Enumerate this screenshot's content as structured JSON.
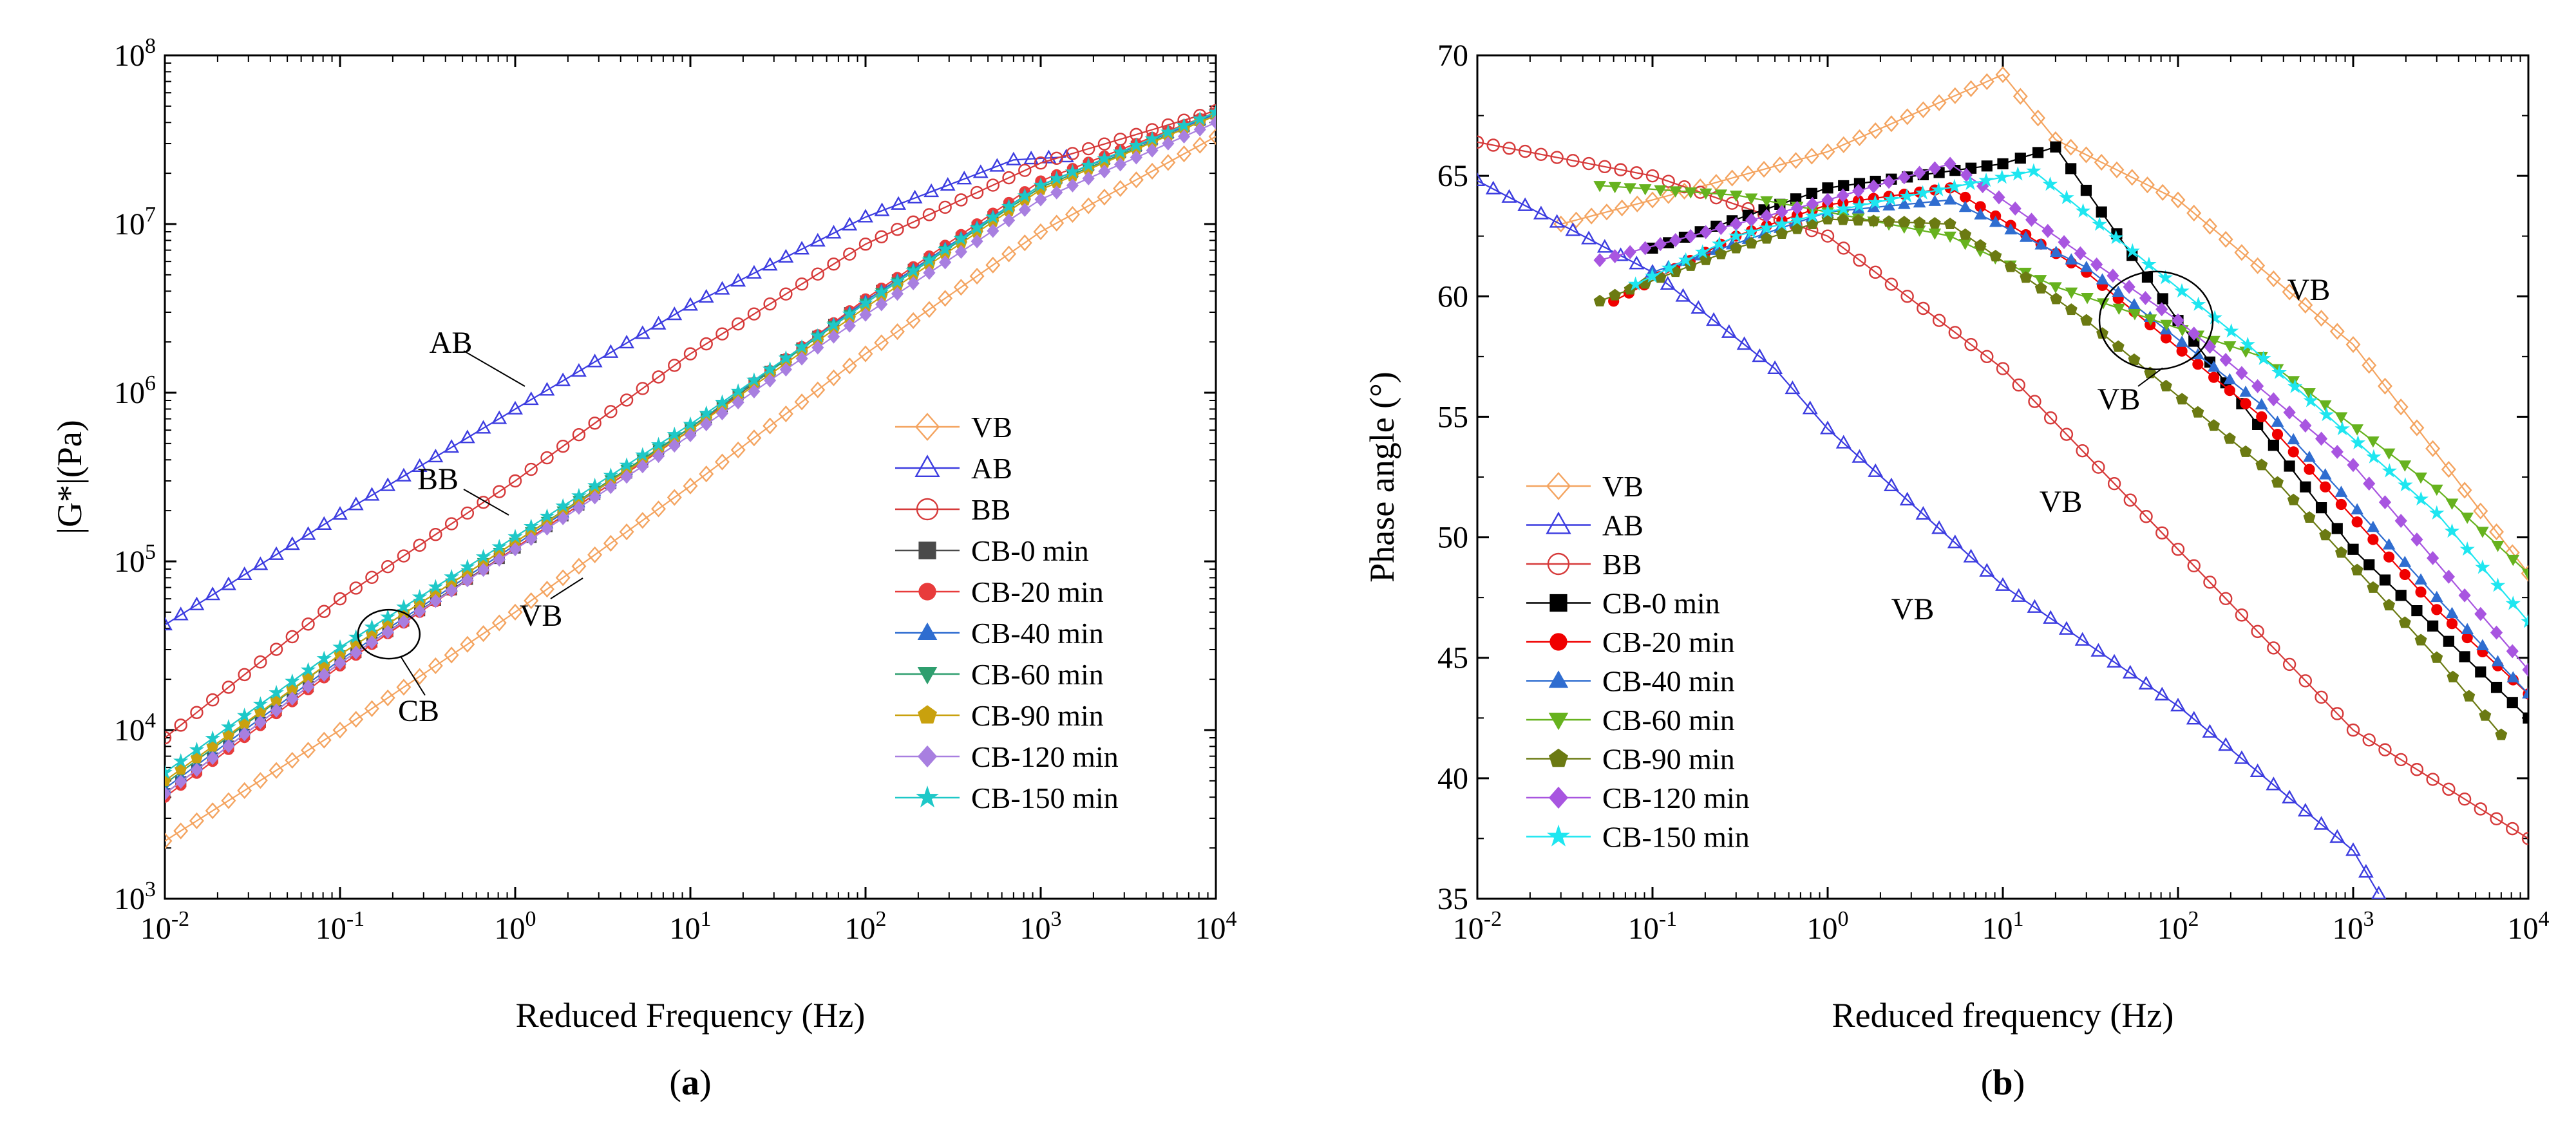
{
  "chart_data": [
    {
      "type": "scatter",
      "panel_label": "a",
      "xlabel": "Reduced Frequency (Hz)",
      "ylabel": "|G*|(Pa)",
      "xscale": "log",
      "yscale": "log",
      "xlim": [
        0.01,
        10000
      ],
      "ylim": [
        1000,
        100000000
      ],
      "x_tick_labels": [
        {
          "base": "10",
          "exp": "-2"
        },
        {
          "base": "10",
          "exp": "-1"
        },
        {
          "base": "10",
          "exp": "0"
        },
        {
          "base": "10",
          "exp": "1"
        },
        {
          "base": "10",
          "exp": "2"
        },
        {
          "base": "10",
          "exp": "3"
        },
        {
          "base": "10",
          "exp": "4"
        }
      ],
      "y_tick_labels": [
        {
          "base": "10",
          "exp": "3"
        },
        {
          "base": "10",
          "exp": "4"
        },
        {
          "base": "10",
          "exp": "5"
        },
        {
          "base": "10",
          "exp": "6"
        },
        {
          "base": "10",
          "exp": "7"
        },
        {
          "base": "10",
          "exp": "8"
        }
      ],
      "legend_position": "lower-right",
      "annotations": [
        {
          "text": "AB",
          "x": 0.6,
          "y": 1400000
        },
        {
          "text": "BB",
          "x": 0.3,
          "y": 320000
        },
        {
          "text": "VB",
          "x": 2.3,
          "y": 38000
        },
        {
          "text": "CB",
          "x": 0.45,
          "y": 9000
        }
      ],
      "series": [
        {
          "name": "VB",
          "color": "#F4A460",
          "marker": "diamond-open",
          "x": [
            0.01,
            0.1,
            1,
            10,
            100,
            1000,
            10000
          ],
          "y": [
            2200,
            10000,
            50000,
            280000,
            1700000,
            9000000,
            33000000
          ]
        },
        {
          "name": "AB",
          "color": "#3C3CE0",
          "marker": "triangle-open",
          "x": [
            0.01,
            0.1,
            1,
            10,
            100,
            700,
            1400
          ],
          "y": [
            42000,
            190000,
            800000,
            3300000,
            11000000,
            24000000,
            25000000
          ]
        },
        {
          "name": "BB",
          "color": "#D63A3A",
          "marker": "circle-open",
          "x": [
            0.01,
            0.1,
            1,
            10,
            100,
            1000,
            10000
          ],
          "y": [
            9000,
            60000,
            300000,
            1700000,
            7600000,
            23000000,
            47000000
          ]
        },
        {
          "name": "CB-0 min",
          "color": "#4A4A4A",
          "marker": "square",
          "x": [
            0.01,
            0.1,
            1,
            10,
            100,
            1000,
            10000
          ],
          "y": [
            4200,
            25000,
            120000,
            600000,
            3500000,
            17000000,
            45000000
          ]
        },
        {
          "name": "CB-20 min",
          "color": "#E83B3B",
          "marker": "circle",
          "x": [
            0.01,
            0.1,
            1,
            10,
            100,
            1000,
            10000
          ],
          "y": [
            4000,
            24000,
            120000,
            600000,
            3600000,
            18000000,
            46000000
          ]
        },
        {
          "name": "CB-40 min",
          "color": "#2F6DD0",
          "marker": "triangle",
          "x": [
            0.01,
            0.1,
            1,
            10,
            100,
            1000,
            10000
          ],
          "y": [
            4500,
            26000,
            125000,
            620000,
            3500000,
            17000000,
            45000000
          ]
        },
        {
          "name": "CB-60 min",
          "color": "#2E9E6E",
          "marker": "triangle-down",
          "x": [
            0.01,
            0.1,
            1,
            10,
            100,
            1000,
            10000
          ],
          "y": [
            4800,
            28000,
            130000,
            620000,
            3400000,
            16500000,
            44000000
          ]
        },
        {
          "name": "CB-90 min",
          "color": "#C9A10E",
          "marker": "pentagon",
          "x": [
            0.01,
            0.1,
            1,
            10,
            100,
            1000,
            10000
          ],
          "y": [
            5000,
            28000,
            130000,
            600000,
            3200000,
            16000000,
            44000000
          ]
        },
        {
          "name": "CB-120 min",
          "color": "#A87FE0",
          "marker": "diamond",
          "x": [
            0.01,
            0.1,
            1,
            10,
            100,
            1000,
            10000
          ],
          "y": [
            4200,
            25000,
            118000,
            560000,
            2900000,
            14000000,
            40000000
          ]
        },
        {
          "name": "CB-150 min",
          "color": "#1EC8C8",
          "marker": "star",
          "x": [
            0.01,
            0.1,
            1,
            10,
            100,
            1000,
            10000
          ],
          "y": [
            5600,
            31000,
            140000,
            650000,
            3400000,
            17000000,
            46000000
          ]
        }
      ]
    },
    {
      "type": "line",
      "panel_label": "b",
      "xlabel": "Reduced frequency (Hz)",
      "ylabel": "Phase angle (°)",
      "xscale": "log",
      "yscale": "linear",
      "xlim": [
        0.01,
        10000
      ],
      "ylim": [
        35,
        70
      ],
      "x_tick_labels": [
        {
          "base": "10",
          "exp": "-2"
        },
        {
          "base": "10",
          "exp": "-1"
        },
        {
          "base": "10",
          "exp": "0"
        },
        {
          "base": "10",
          "exp": "1"
        },
        {
          "base": "10",
          "exp": "2"
        },
        {
          "base": "10",
          "exp": "3"
        },
        {
          "base": "10",
          "exp": "4"
        }
      ],
      "y_ticks": [
        35,
        40,
        45,
        50,
        55,
        60,
        65,
        70
      ],
      "legend_position": "lower-left",
      "annotations": [
        {
          "text": "VB",
          "x": 900,
          "y": 59.8
        },
        {
          "text": "VB",
          "x": 80,
          "y": 54.2
        },
        {
          "text": "VB",
          "x": 15,
          "y": 50.3
        },
        {
          "text": "VB",
          "x": 0.5,
          "y": 46.2
        }
      ],
      "series": [
        {
          "name": "VB",
          "color": "#F4A460",
          "marker": "diamond-open",
          "x": [
            0.03,
            0.1,
            1,
            10,
            20,
            100,
            1000,
            10000
          ],
          "y": [
            63.0,
            64.0,
            66.0,
            69.2,
            66.5,
            64.0,
            58.0,
            48.5
          ]
        },
        {
          "name": "AB",
          "color": "#3C3CE0",
          "marker": "triangle-open",
          "x": [
            0.01,
            0.1,
            0.5,
            1,
            10,
            100,
            1000,
            1400
          ],
          "y": [
            64.8,
            61.0,
            57.0,
            54.5,
            48.0,
            43.0,
            37.0,
            35.2
          ]
        },
        {
          "name": "BB",
          "color": "#D63A3A",
          "marker": "circle-open",
          "x": [
            0.01,
            0.1,
            1,
            10,
            100,
            1000,
            10000
          ],
          "y": [
            66.4,
            65.0,
            62.5,
            57.0,
            49.5,
            42.0,
            37.5
          ]
        },
        {
          "name": "CB-0 min",
          "color": "#000000",
          "marker": "square",
          "x": [
            0.1,
            1,
            10,
            20,
            100,
            1000,
            10000
          ],
          "y": [
            62.0,
            64.5,
            65.5,
            66.2,
            59.0,
            49.5,
            42.5
          ]
        },
        {
          "name": "CB-20 min",
          "color": "#F00000",
          "marker": "circle",
          "x": [
            0.06,
            0.3,
            1,
            5,
            30,
            300,
            3000,
            10000
          ],
          "y": [
            59.8,
            62.5,
            63.8,
            64.5,
            61.0,
            55.0,
            47.0,
            43.5
          ]
        },
        {
          "name": "CB-40 min",
          "color": "#2F6DD0",
          "marker": "triangle",
          "x": [
            0.1,
            1,
            5,
            30,
            300,
            3000,
            10000
          ],
          "y": [
            61.0,
            63.5,
            64.0,
            61.2,
            55.5,
            47.5,
            43.5
          ]
        },
        {
          "name": "CB-60 min",
          "color": "#66B21E",
          "marker": "triangle-down",
          "x": [
            0.05,
            0.3,
            1,
            5,
            20,
            300,
            3000,
            10000
          ],
          "y": [
            64.6,
            64.2,
            63.5,
            62.5,
            60.4,
            57.5,
            52.0,
            48.5
          ]
        },
        {
          "name": "CB-90 min",
          "color": "#6B7A12",
          "marker": "pentagon",
          "x": [
            0.05,
            0.3,
            1,
            5,
            30,
            300,
            3000,
            7000
          ],
          "y": [
            59.8,
            62.0,
            63.2,
            63.0,
            59.0,
            53.0,
            45.0,
            41.8
          ]
        },
        {
          "name": "CB-120 min",
          "color": "#A855E0",
          "marker": "diamond",
          "x": [
            0.05,
            0.3,
            1,
            5,
            100,
            1000,
            10000
          ],
          "y": [
            61.5,
            63.0,
            64.0,
            65.5,
            59.0,
            53.0,
            44.5
          ]
        },
        {
          "name": "CB-150 min",
          "color": "#1EE6F0",
          "marker": "star",
          "x": [
            0.08,
            0.3,
            1,
            15,
            250,
            3000,
            10000
          ],
          "y": [
            60.5,
            62.5,
            63.5,
            65.2,
            58.0,
            51.0,
            46.5
          ]
        }
      ]
    }
  ]
}
